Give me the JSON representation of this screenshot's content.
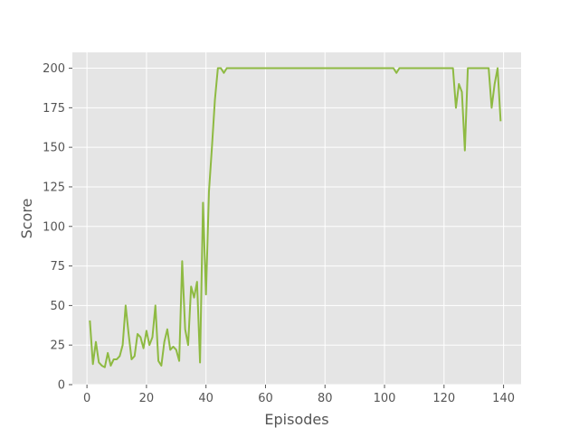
{
  "chart_data": {
    "type": "line",
    "title": "",
    "xlabel": "Episodes",
    "ylabel": "Score",
    "xlim": [
      -4.9,
      145.9
    ],
    "ylim": [
      0,
      210
    ],
    "xticks": [
      0,
      20,
      40,
      60,
      80,
      100,
      120,
      140
    ],
    "yticks": [
      0,
      25,
      50,
      75,
      100,
      125,
      150,
      175,
      200
    ],
    "grid": true,
    "legend": "none",
    "background": "#E5E5E5",
    "grid_color": "#FFFFFF",
    "series": [
      {
        "color": "#8EBA42",
        "x": [
          1,
          2,
          3,
          4,
          5,
          6,
          7,
          8,
          9,
          10,
          11,
          12,
          13,
          14,
          15,
          16,
          17,
          18,
          19,
          20,
          21,
          22,
          23,
          24,
          25,
          26,
          27,
          28,
          29,
          30,
          31,
          32,
          33,
          34,
          35,
          36,
          37,
          38,
          39,
          40,
          41,
          42,
          43,
          44,
          45,
          46,
          47,
          48,
          60,
          80,
          100,
          103,
          104,
          105,
          106,
          110,
          120,
          123,
          124,
          125,
          126,
          127,
          128,
          129,
          130,
          135,
          136,
          137,
          138,
          139
        ],
        "y": [
          40,
          13,
          27,
          14,
          12,
          11,
          20,
          12,
          16,
          16,
          18,
          25,
          50,
          32,
          16,
          18,
          32,
          30,
          23,
          34,
          25,
          30,
          50,
          15,
          12,
          27,
          35,
          22,
          24,
          22,
          15,
          78,
          35,
          25,
          62,
          55,
          65,
          14,
          115,
          57,
          122,
          150,
          180,
          200,
          200,
          197,
          200,
          200,
          200,
          200,
          200,
          200,
          197,
          200,
          200,
          200,
          200,
          200,
          175,
          190,
          185,
          148,
          200,
          200,
          200,
          200,
          175,
          190,
          200,
          167
        ]
      }
    ]
  }
}
